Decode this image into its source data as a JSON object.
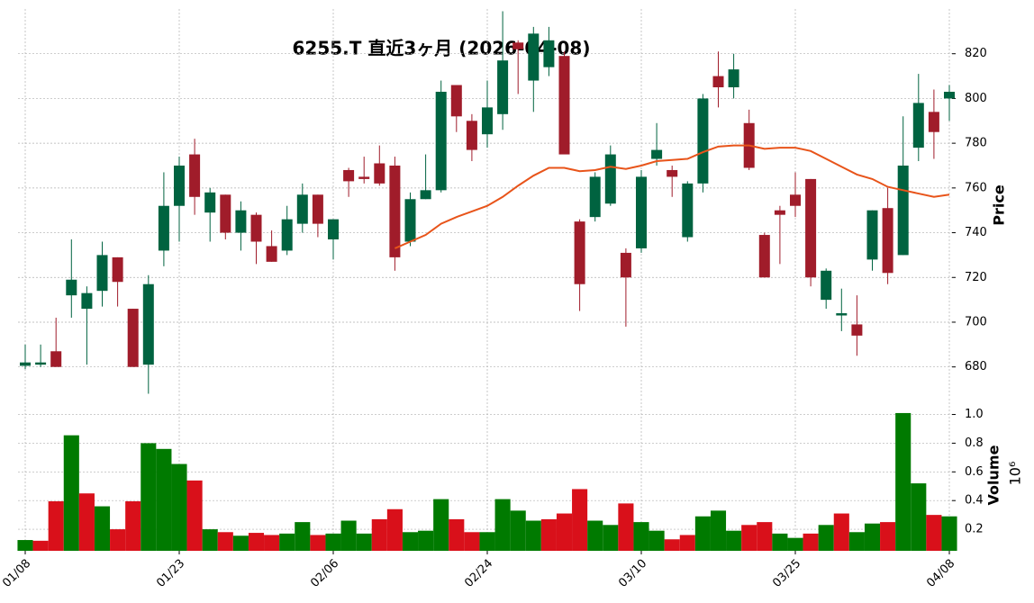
{
  "chart_data": [
    {
      "type": "candlestick",
      "title": "6255.T 直近3ヶ月 (2026-04-08)",
      "ylabel": "Price",
      "up_color": "#006340",
      "down_color": "#a01c2a",
      "open": [
        680.5,
        681,
        687,
        712,
        706,
        714,
        729,
        706,
        681,
        732,
        752,
        775,
        749,
        757,
        740,
        748,
        734,
        732,
        744,
        757,
        737,
        768,
        765,
        771,
        770,
        736,
        755,
        759,
        806,
        790,
        784,
        793,
        825,
        808,
        814,
        819,
        745,
        747,
        753,
        731,
        733,
        773,
        768,
        738,
        762,
        810,
        805,
        789,
        739,
        750,
        757,
        764,
        710,
        703,
        699,
        728,
        751,
        730,
        778,
        794,
        800
      ],
      "high": [
        690,
        690,
        702,
        737,
        716,
        736,
        729,
        706,
        721,
        767,
        774,
        782,
        760,
        757,
        754,
        749,
        741,
        752,
        762,
        757,
        746,
        769,
        774,
        779,
        774,
        758,
        775,
        808,
        806,
        793,
        808,
        839,
        826,
        832,
        832,
        821,
        746,
        767,
        779,
        733,
        768,
        789,
        770,
        763,
        802,
        821,
        820,
        795,
        740,
        752,
        767,
        764,
        724,
        715,
        712,
        750,
        760,
        792,
        811,
        804,
        806
      ],
      "low": [
        679,
        680,
        680,
        702,
        681,
        707,
        707,
        680,
        668,
        725,
        736,
        748,
        736,
        737,
        732,
        726,
        727,
        730,
        740,
        738,
        728,
        756,
        762,
        761,
        723,
        734,
        755,
        758,
        785,
        772,
        778,
        786,
        802,
        794,
        810,
        775,
        705,
        745,
        752,
        698,
        731,
        770,
        756,
        736,
        758,
        796,
        800,
        768,
        720,
        726,
        747,
        716,
        706,
        696,
        685,
        723,
        717,
        730,
        772,
        773,
        790
      ],
      "close": [
        682,
        682,
        680,
        719,
        713,
        730,
        718,
        680,
        717,
        752,
        770,
        756,
        758,
        740,
        750,
        736,
        727,
        746,
        757,
        744,
        746,
        763,
        764,
        762,
        729,
        755,
        759,
        803,
        792,
        777,
        796,
        817,
        822,
        829,
        826,
        775,
        717,
        765,
        775,
        720,
        765,
        777,
        765,
        762,
        800,
        805,
        813,
        769,
        720,
        748,
        752,
        720,
        723,
        704,
        694,
        750,
        722,
        770,
        798,
        785,
        803
      ],
      "ma": {
        "color": "#e8541a",
        "values": [
          null,
          null,
          null,
          null,
          null,
          null,
          null,
          null,
          null,
          null,
          null,
          null,
          null,
          null,
          null,
          null,
          null,
          null,
          null,
          null,
          null,
          null,
          null,
          null,
          733,
          736,
          739,
          744,
          747,
          749.5,
          752,
          756,
          761,
          765.5,
          769,
          769,
          767.5,
          768,
          769.5,
          768.5,
          770,
          772,
          772.5,
          773,
          776,
          778.5,
          779,
          779,
          777.5,
          778,
          778,
          776.5,
          773,
          769.5,
          766,
          764,
          760.5,
          759,
          757.5,
          756,
          757
        ]
      },
      "ylim": [
        667,
        840
      ],
      "yticks": [
        680,
        700,
        720,
        740,
        760,
        780,
        800,
        820
      ],
      "grid": true
    },
    {
      "type": "bar",
      "ylabel": "Volume",
      "offset_label": "10⁶",
      "categories": [
        "01/08",
        null,
        null,
        null,
        null,
        null,
        null,
        null,
        null,
        null,
        "01/23",
        null,
        null,
        null,
        null,
        null,
        null,
        null,
        null,
        null,
        "02/06",
        null,
        null,
        null,
        null,
        null,
        null,
        null,
        null,
        null,
        "02/24",
        null,
        null,
        null,
        null,
        null,
        null,
        null,
        null,
        null,
        "03/10",
        null,
        null,
        null,
        null,
        null,
        null,
        null,
        null,
        null,
        "03/25",
        null,
        null,
        null,
        null,
        null,
        null,
        null,
        null,
        null,
        "04/08"
      ],
      "values": [
        0.125,
        0.12,
        0.395,
        0.855,
        0.45,
        0.36,
        0.2,
        0.395,
        0.8,
        0.76,
        0.655,
        0.54,
        0.2,
        0.18,
        0.155,
        0.175,
        0.16,
        0.17,
        0.25,
        0.16,
        0.17,
        0.26,
        0.17,
        0.27,
        0.34,
        0.18,
        0.19,
        0.41,
        0.27,
        0.18,
        0.18,
        0.41,
        0.33,
        0.26,
        0.27,
        0.31,
        0.48,
        0.26,
        0.23,
        0.38,
        0.25,
        0.19,
        0.13,
        0.16,
        0.29,
        0.33,
        0.19,
        0.23,
        0.25,
        0.17,
        0.14,
        0.17,
        0.23,
        0.31,
        0.18,
        0.24,
        0.25,
        1.01,
        0.52,
        0.3,
        0.29
      ],
      "colors": [
        "#007a00",
        "#d9101a",
        "#d9101a",
        "#007a00",
        "#d9101a",
        "#007a00",
        "#d9101a",
        "#d9101a",
        "#007a00",
        "#007a00",
        "#007a00",
        "#d9101a",
        "#007a00",
        "#d9101a",
        "#007a00",
        "#d9101a",
        "#d9101a",
        "#007a00",
        "#007a00",
        "#d9101a",
        "#007a00",
        "#007a00",
        "#007a00",
        "#d9101a",
        "#d9101a",
        "#007a00",
        "#007a00",
        "#007a00",
        "#d9101a",
        "#d9101a",
        "#007a00",
        "#007a00",
        "#007a00",
        "#007a00",
        "#d9101a",
        "#d9101a",
        "#d9101a",
        "#007a00",
        "#007a00",
        "#d9101a",
        "#007a00",
        "#007a00",
        "#d9101a",
        "#d9101a",
        "#007a00",
        "#007a00",
        "#007a00",
        "#d9101a",
        "#d9101a",
        "#007a00",
        "#007a00",
        "#d9101a",
        "#007a00",
        "#d9101a",
        "#007a00",
        "#007a00",
        "#d9101a",
        "#007a00",
        "#007a00",
        "#d9101a",
        "#007a00"
      ],
      "ylim": [
        0.05,
        1.11
      ],
      "yticks": [
        0.2,
        0.4,
        0.6,
        0.8,
        {
          "value": 1,
          "label": "1.0"
        }
      ],
      "grid": true
    }
  ]
}
